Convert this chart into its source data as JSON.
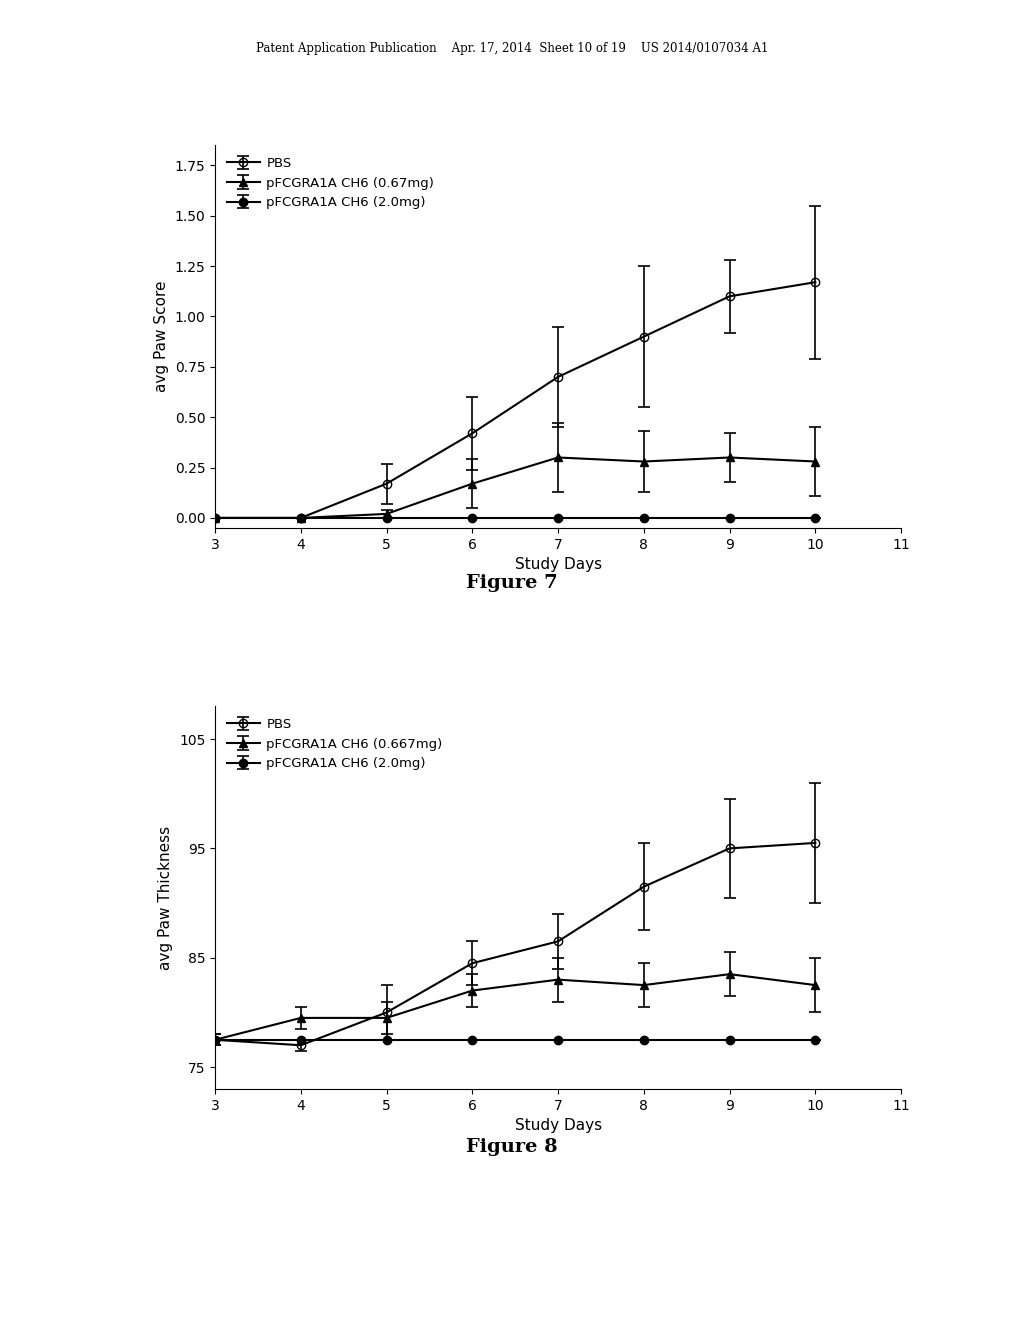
{
  "fig7": {
    "title": "Figure 7",
    "xlabel": "Study Days",
    "ylabel": "avg Paw Score",
    "xlim": [
      3,
      11
    ],
    "ylim": [
      -0.05,
      1.85
    ],
    "xticks": [
      3,
      4,
      5,
      6,
      7,
      8,
      9,
      10,
      11
    ],
    "yticks": [
      0.0,
      0.25,
      0.5,
      0.75,
      1.0,
      1.25,
      1.5,
      1.75
    ],
    "series": [
      {
        "label": "PBS",
        "x": [
          3,
          4,
          5,
          6,
          7,
          8,
          9,
          10
        ],
        "y": [
          0.0,
          0.0,
          0.17,
          0.42,
          0.7,
          0.9,
          1.1,
          1.17
        ],
        "yerr": [
          0.0,
          0.0,
          0.1,
          0.18,
          0.25,
          0.35,
          0.18,
          0.38
        ],
        "marker": "o",
        "fillstyle": "none",
        "color": "#000000",
        "linewidth": 1.5
      },
      {
        "label": "pFCGRA1A CH6 (0.67mg)",
        "x": [
          3,
          4,
          5,
          6,
          7,
          8,
          9,
          10
        ],
        "y": [
          0.0,
          0.0,
          0.02,
          0.17,
          0.3,
          0.28,
          0.3,
          0.28
        ],
        "yerr": [
          0.0,
          0.0,
          0.02,
          0.12,
          0.17,
          0.15,
          0.12,
          0.17
        ],
        "marker": "^",
        "fillstyle": "full",
        "color": "#000000",
        "linewidth": 1.5
      },
      {
        "label": "pFCGRA1A CH6 (2.0mg)",
        "x": [
          3,
          4,
          5,
          6,
          7,
          8,
          9,
          10
        ],
        "y": [
          0.0,
          0.0,
          0.0,
          0.0,
          0.0,
          0.0,
          0.0,
          0.0
        ],
        "yerr": [
          0.0,
          0.0,
          0.0,
          0.0,
          0.0,
          0.0,
          0.0,
          0.0
        ],
        "marker": "o",
        "fillstyle": "full",
        "color": "#000000",
        "linewidth": 1.5
      }
    ]
  },
  "fig8": {
    "title": "Figure 8",
    "xlabel": "Study Days",
    "ylabel": "avg Paw Thickness",
    "xlim": [
      3,
      11
    ],
    "ylim": [
      73,
      108
    ],
    "xticks": [
      3,
      4,
      5,
      6,
      7,
      8,
      9,
      10,
      11
    ],
    "yticks": [
      75,
      85,
      95,
      105
    ],
    "series": [
      {
        "label": "PBS",
        "x": [
          3,
          4,
          5,
          6,
          7,
          8,
          9,
          10
        ],
        "y": [
          77.5,
          77.0,
          80.0,
          84.5,
          86.5,
          91.5,
          95.0,
          95.5
        ],
        "yerr": [
          0.5,
          0.5,
          2.5,
          2.0,
          2.5,
          4.0,
          4.5,
          5.5
        ],
        "marker": "o",
        "fillstyle": "none",
        "color": "#000000",
        "linewidth": 1.5
      },
      {
        "label": "pFCGRA1A CH6 (0.667mg)",
        "x": [
          3,
          4,
          5,
          6,
          7,
          8,
          9,
          10
        ],
        "y": [
          77.5,
          79.5,
          79.5,
          82.0,
          83.0,
          82.5,
          83.5,
          82.5
        ],
        "yerr": [
          0.5,
          1.0,
          1.5,
          1.5,
          2.0,
          2.0,
          2.0,
          2.5
        ],
        "marker": "^",
        "fillstyle": "full",
        "color": "#000000",
        "linewidth": 1.5
      },
      {
        "label": "pFCGRA1A CH6 (2.0mg)",
        "x": [
          3,
          4,
          5,
          6,
          7,
          8,
          9,
          10
        ],
        "y": [
          77.5,
          77.5,
          77.5,
          77.5,
          77.5,
          77.5,
          77.5,
          77.5
        ],
        "yerr": [
          0.0,
          0.0,
          0.0,
          0.0,
          0.0,
          0.0,
          0.0,
          0.0
        ],
        "marker": "o",
        "fillstyle": "full",
        "color": "#000000",
        "linewidth": 1.5
      }
    ]
  },
  "header_text": "Patent Application Publication    Apr. 17, 2014  Sheet 10 of 19    US 2014/0107034 A1",
  "bg_color": "#ffffff",
  "text_color": "#000000"
}
